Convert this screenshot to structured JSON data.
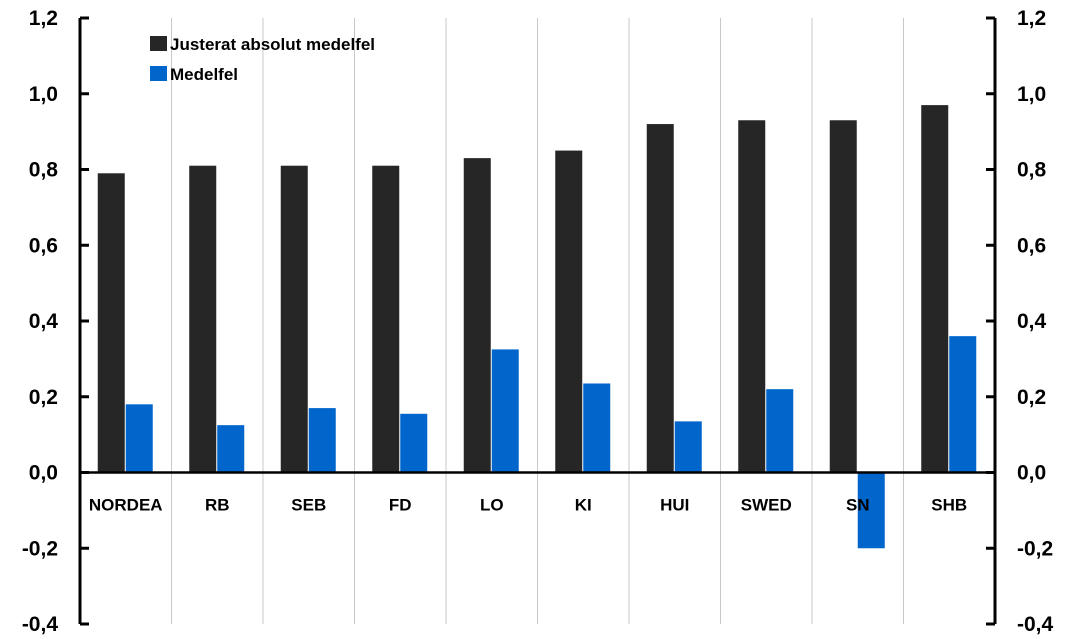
{
  "chart_data": {
    "type": "bar",
    "categories": [
      "NORDEA",
      "RB",
      "SEB",
      "FD",
      "LO",
      "KI",
      "HUI",
      "SWED",
      "SN",
      "SHB"
    ],
    "series": [
      {
        "name": "Justerat absolut medelfel",
        "color": "#262626",
        "values": [
          0.79,
          0.81,
          0.81,
          0.81,
          0.83,
          0.85,
          0.92,
          0.93,
          0.93,
          0.97
        ]
      },
      {
        "name": "Medelfel",
        "color": "#0066cc",
        "values": [
          0.18,
          0.125,
          0.17,
          0.155,
          0.325,
          0.235,
          0.135,
          0.22,
          -0.2,
          0.36
        ]
      }
    ],
    "ylim": [
      -0.4,
      1.2
    ],
    "yticks": [
      "-0,4",
      "-0,2",
      "0,0",
      "0,2",
      "0,4",
      "0,6",
      "0,8",
      "1,0",
      "1,2"
    ],
    "ytick_values": [
      -0.4,
      -0.2,
      0.0,
      0.2,
      0.4,
      0.6,
      0.8,
      1.0,
      1.2
    ],
    "grid": "vertical",
    "legend": "top-left",
    "dual_axis": true
  }
}
